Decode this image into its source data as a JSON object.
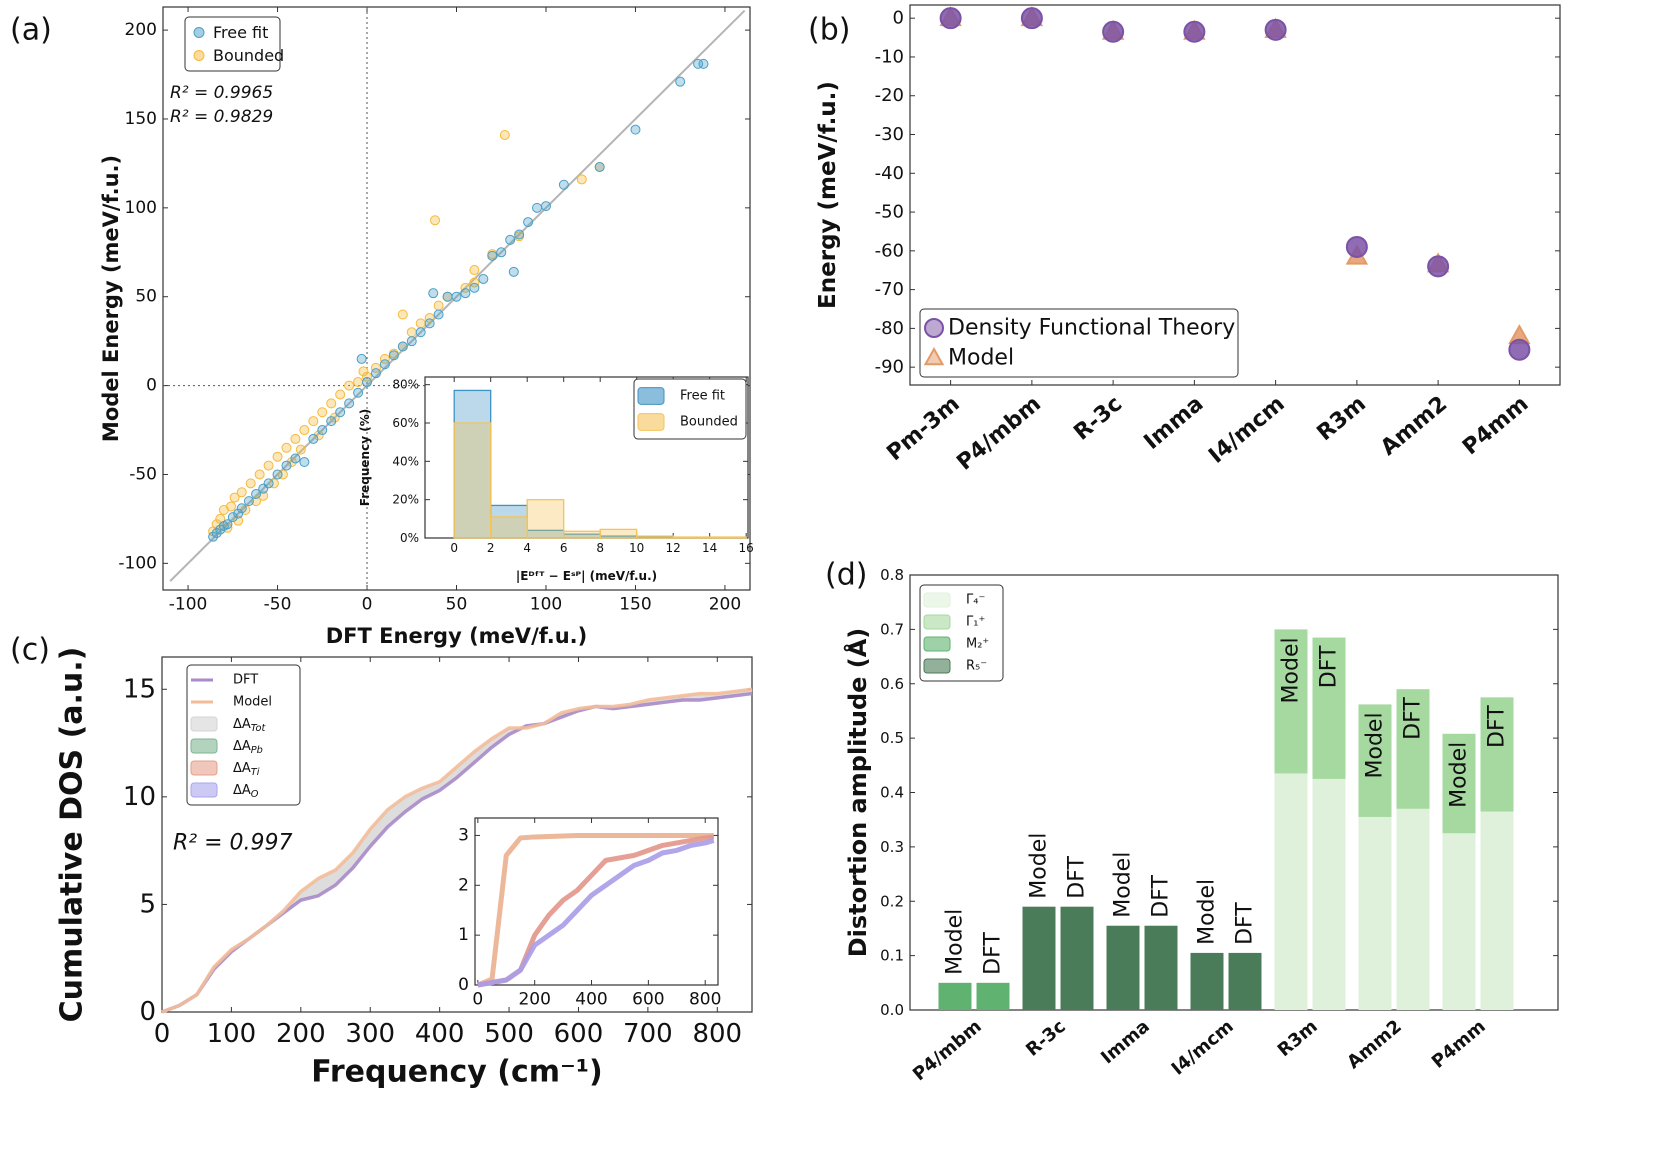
{
  "chart_data": [
    {
      "type": "scatter",
      "panel_label": "(a)",
      "xlabel": "DFT Energy (meV/f.u.)",
      "ylabel": "Model Energy (meV/f.u.)",
      "xlim": [
        -114,
        214
      ],
      "ylim": [
        -115,
        213
      ],
      "xticks": [
        -100,
        -50,
        0,
        50,
        100,
        150,
        200
      ],
      "yticks": [
        -100,
        -50,
        0,
        50,
        100,
        150,
        200
      ],
      "zero_lines": true,
      "identity_line": true,
      "legend": "upper left",
      "annotations": [
        {
          "text": "R² = 0.9965",
          "color": "#2c8ab8"
        },
        {
          "text": "R² = 0.9829",
          "color": "#f0a818"
        }
      ],
      "series": [
        {
          "name": "Free fit",
          "color": "#4a9fc8",
          "marker": "circle",
          "x": [
            -86,
            -84,
            -82,
            -80,
            -78,
            -75,
            -72,
            -70,
            -66,
            -62,
            -58,
            -55,
            -50,
            -45,
            -40,
            -35,
            -30,
            -25,
            -20,
            -15,
            -10,
            -5,
            0,
            5,
            10,
            15,
            20,
            25,
            30,
            35,
            40,
            45,
            50,
            55,
            60,
            65,
            70,
            75,
            80,
            85,
            90,
            95,
            100,
            110,
            130,
            150,
            175,
            185,
            188,
            -3,
            37,
            82
          ],
          "values": [
            -85,
            -83,
            -81,
            -79,
            -78,
            -74,
            -72,
            -69,
            -65,
            -61,
            -58,
            -55,
            -50,
            -45,
            -41,
            -43,
            -30,
            -25,
            -20,
            -15,
            -10,
            -4,
            2,
            7,
            12,
            17,
            22,
            25,
            30,
            35,
            40,
            50,
            50,
            52,
            55,
            60,
            73,
            75,
            82,
            85,
            92,
            100,
            101,
            113,
            123,
            144,
            171,
            181,
            181,
            15,
            52,
            64
          ]
        },
        {
          "name": "Bounded",
          "color": "#f6b93b",
          "marker": "circle",
          "x": [
            -86,
            -84,
            -82,
            -80,
            -78,
            -76,
            -74,
            -72,
            -70,
            -68,
            -65,
            -62,
            -60,
            -58,
            -55,
            -52,
            -50,
            -47,
            -45,
            -42,
            -40,
            -37,
            -35,
            -30,
            -27,
            -25,
            -20,
            -18,
            -15,
            -10,
            -5,
            -2,
            0,
            5,
            10,
            15,
            20,
            25,
            38,
            35,
            40,
            45,
            55,
            60,
            70,
            85,
            130,
            120,
            77,
            20,
            60,
            30
          ],
          "values": [
            -82,
            -78,
            -75,
            -70,
            -80,
            -68,
            -63,
            -76,
            -60,
            -70,
            -55,
            -65,
            -50,
            -62,
            -45,
            -55,
            -40,
            -50,
            -35,
            -43,
            -30,
            -36,
            -25,
            -20,
            -28,
            -15,
            -10,
            -18,
            -5,
            0,
            2,
            8,
            5,
            10,
            15,
            18,
            22,
            30,
            93,
            38,
            45,
            50,
            55,
            58,
            74,
            84,
            123,
            116,
            141,
            40,
            65,
            35
          ]
        }
      ]
    },
    {
      "type": "histogram",
      "xlabel": "|Eᴰᶠᵀ − Eˢᴾ| (meV/f.u.)",
      "ylabel": "Frequency (%)",
      "xlim": [
        -1.6,
        16.1
      ],
      "ylim": [
        0,
        84
      ],
      "xticks": [
        0,
        2,
        4,
        6,
        8,
        10,
        12,
        14,
        16
      ],
      "yticks": [
        {
          "value": 0,
          "label": "0%"
        },
        {
          "value": 20,
          "label": "20%"
        },
        {
          "value": 40,
          "label": "40%"
        },
        {
          "value": 60,
          "label": "60%"
        },
        {
          "value": 80,
          "label": "80%"
        }
      ],
      "legend": "upper right",
      "bins": [
        0,
        2,
        4,
        6,
        8,
        10,
        12,
        14,
        16
      ],
      "series": [
        {
          "name": "Free fit",
          "color": "#3d93c4",
          "values": [
            77,
            17,
            4,
            2,
            1,
            0.5,
            0.3,
            0.2
          ]
        },
        {
          "name": "Bounded",
          "color": "#f5c35a",
          "values": [
            60,
            11,
            20,
            3.5,
            4.5,
            1,
            0.5,
            0.5
          ]
        }
      ]
    },
    {
      "type": "scatter",
      "panel_label": "(b)",
      "ylabel": "Energy (meV/f.u.)",
      "categories": [
        "Pm-3m",
        "P4/mbm",
        "R-3c",
        "Imma",
        "I4/mcm",
        "R3m",
        "Amm2",
        "P4mm"
      ],
      "ylim": [
        -94.6,
        3.4
      ],
      "yticks": [
        0,
        -10,
        -20,
        -30,
        -40,
        -50,
        -60,
        -70,
        -80,
        -90
      ],
      "legend": "lower left",
      "series": [
        {
          "name": "Density Functional Theory",
          "color": "#7b52a6",
          "marker": "circle",
          "values": [
            0,
            0,
            -3.5,
            -3.5,
            -3,
            -59,
            -64,
            -85.5
          ]
        },
        {
          "name": "Model",
          "color": "#e39a66",
          "marker": "triangle",
          "values": [
            0,
            0,
            -3.5,
            -3.5,
            -3,
            -61.5,
            -63.5,
            -82
          ]
        }
      ]
    },
    {
      "type": "line",
      "panel_label": "(c)",
      "xlabel": "Frequency (cm⁻¹)",
      "ylabel": "Cumulative DOS (a.u.)",
      "xlim": [
        0,
        850
      ],
      "ylim": [
        0,
        16.5
      ],
      "xticks": [
        0,
        100,
        200,
        300,
        400,
        500,
        600,
        700,
        800
      ],
      "yticks": [
        0,
        5,
        10,
        15
      ],
      "legend": "upper left",
      "fill_between_color": "#d4d4d4",
      "annotations": [
        {
          "text": "R² = 0.997",
          "color": "#222222"
        }
      ],
      "x": [
        0,
        25,
        50,
        75,
        100,
        125,
        150,
        175,
        200,
        225,
        250,
        275,
        300,
        325,
        350,
        375,
        400,
        425,
        450,
        475,
        500,
        525,
        550,
        575,
        600,
        625,
        650,
        675,
        700,
        725,
        750,
        775,
        800,
        825,
        850
      ],
      "series": [
        {
          "name": "DFT",
          "color": "#a98bc9",
          "values": [
            0,
            0.3,
            0.8,
            2.0,
            2.8,
            3.4,
            4.0,
            4.6,
            5.2,
            5.4,
            5.9,
            6.7,
            7.7,
            8.6,
            9.3,
            9.9,
            10.3,
            10.9,
            11.6,
            12.3,
            12.9,
            13.3,
            13.4,
            13.7,
            14.0,
            14.2,
            14.1,
            14.2,
            14.3,
            14.4,
            14.5,
            14.5,
            14.6,
            14.7,
            14.8
          ]
        },
        {
          "name": "Model",
          "color": "#f2bc9a",
          "values": [
            0,
            0.3,
            0.8,
            2.1,
            2.9,
            3.4,
            4.0,
            4.7,
            5.6,
            6.2,
            6.6,
            7.4,
            8.5,
            9.4,
            10.0,
            10.4,
            10.7,
            11.4,
            12.1,
            12.7,
            13.2,
            13.2,
            13.4,
            13.9,
            14.1,
            14.2,
            14.2,
            14.3,
            14.5,
            14.6,
            14.7,
            14.8,
            14.8,
            14.9,
            15.0
          ]
        }
      ],
      "areas": [
        {
          "symbol": "ΔA",
          "subscript": "Tot",
          "color": "#d4d4d4"
        },
        {
          "symbol": "ΔA",
          "subscript": "Pb",
          "color": "#7fb592"
        },
        {
          "symbol": "ΔA",
          "subscript": "Ti",
          "color": "#e7a08e"
        },
        {
          "symbol": "ΔA",
          "subscript": "O",
          "color": "#aca5ee"
        }
      ]
    },
    {
      "type": "line",
      "xlim": [
        -10,
        845
      ],
      "ylim": [
        0,
        3.35
      ],
      "xticks": [
        0,
        200,
        400,
        600,
        800
      ],
      "yticks": [
        0,
        1,
        2,
        3
      ],
      "x": [
        0,
        50,
        100,
        150,
        200,
        250,
        300,
        350,
        400,
        450,
        500,
        550,
        600,
        650,
        700,
        750,
        800,
        830
      ],
      "series": [
        {
          "color": "#eab08e",
          "values": [
            0,
            0.12,
            2.6,
            2.95,
            2.97,
            2.98,
            2.99,
            3,
            3,
            3,
            3,
            3,
            3,
            3,
            3,
            3,
            3,
            3
          ]
        },
        {
          "color": "#e2958a",
          "values": [
            0,
            0.05,
            0.1,
            0.3,
            1.0,
            1.4,
            1.7,
            1.9,
            2.2,
            2.5,
            2.55,
            2.6,
            2.7,
            2.8,
            2.85,
            2.9,
            2.95,
            2.97
          ]
        },
        {
          "color": "#a99ce8",
          "values": [
            0,
            0.05,
            0.1,
            0.3,
            0.8,
            1.0,
            1.2,
            1.5,
            1.8,
            2.0,
            2.2,
            2.4,
            2.5,
            2.65,
            2.7,
            2.8,
            2.85,
            2.9
          ]
        }
      ]
    },
    {
      "type": "stacked_bar",
      "panel_label": "(d)",
      "ylabel": "Distortion amplitude (Å)",
      "categories": [
        "P4/mbm",
        "R-3c",
        "Imma",
        "I4/mcm",
        "R3m",
        "Amm2",
        "P4mm"
      ],
      "bar_labels": [
        "Model",
        "DFT"
      ],
      "ylim": [
        0,
        0.8
      ],
      "yticks": [
        {
          "value": 0,
          "label": "0.0"
        },
        0.1,
        0.2,
        0.3,
        0.4,
        0.5,
        0.6,
        0.7,
        0.8
      ],
      "legend": "upper left",
      "series": [
        {
          "name": "Γ₄⁻",
          "color": "#dff1da",
          "values": [
            [
              0,
              0
            ],
            [
              0,
              0
            ],
            [
              0,
              0
            ],
            [
              0,
              0
            ],
            [
              0.435,
              0.425
            ],
            [
              0.355,
              0.37
            ],
            [
              0.325,
              0.365
            ]
          ]
        },
        {
          "name": "Γ₁⁺",
          "color": "#a6d9a0",
          "values": [
            [
              0,
              0
            ],
            [
              0,
              0
            ],
            [
              0,
              0
            ],
            [
              0,
              0
            ],
            [
              0.265,
              0.26
            ],
            [
              0.207,
              0.22
            ],
            [
              0.183,
              0.21
            ]
          ]
        },
        {
          "name": "M₂⁺",
          "color": "#5fb270",
          "values": [
            [
              0.05,
              0.05
            ],
            [
              0,
              0
            ],
            [
              0,
              0
            ],
            [
              0,
              0
            ],
            [
              0,
              0
            ],
            [
              0,
              0
            ],
            [
              0,
              0
            ]
          ]
        },
        {
          "name": "R₅⁻",
          "color": "#4b7c59",
          "values": [
            [
              0,
              0
            ],
            [
              0.19,
              0.19
            ],
            [
              0.155,
              0.155
            ],
            [
              0.105,
              0.105
            ],
            [
              0,
              0
            ],
            [
              0,
              0
            ],
            [
              0,
              0
            ]
          ]
        }
      ]
    }
  ]
}
